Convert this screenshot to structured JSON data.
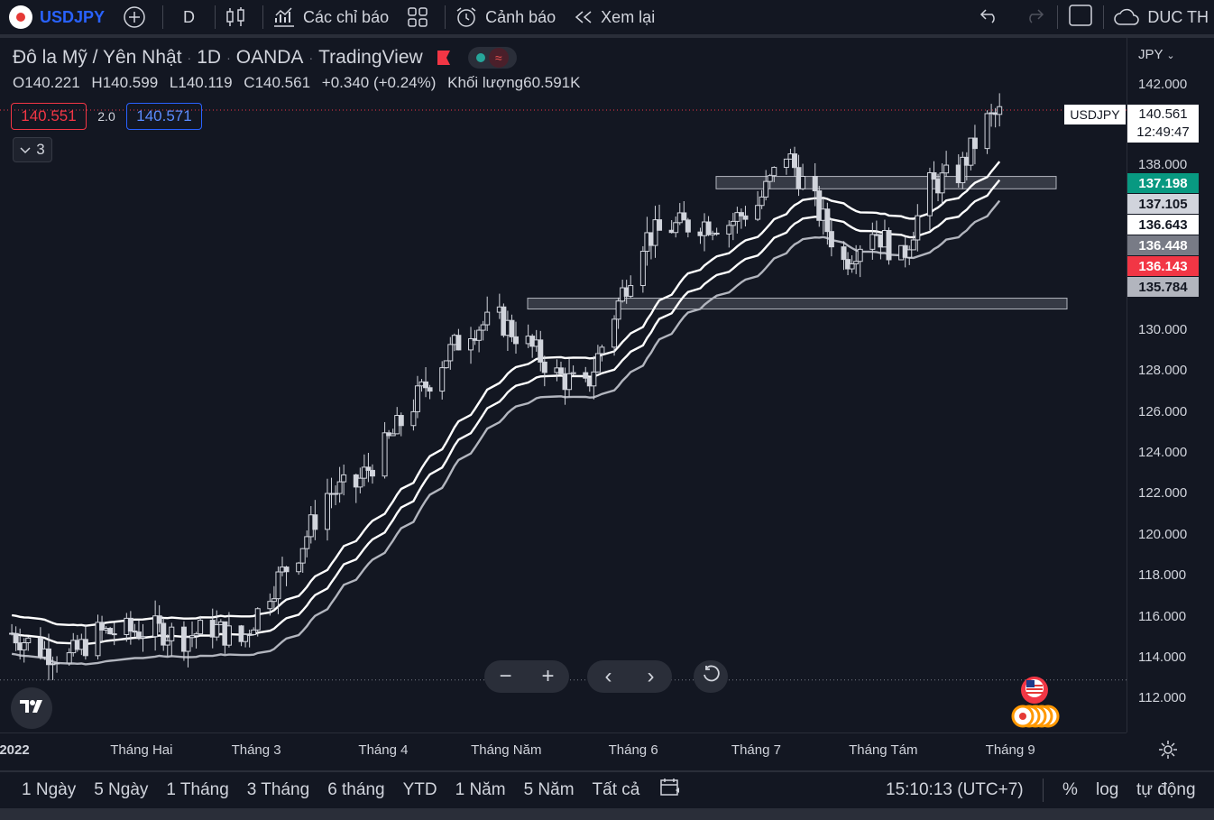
{
  "toolbar": {
    "symbol": "USDJPY",
    "interval": "D",
    "indicators_label": "Các chỉ báo",
    "alert_label": "Cảnh báo",
    "replay_label": "Xem lại",
    "account_label": "DUC TH",
    "icons": [
      "plus-circle-icon",
      "candles-icon",
      "indicators-icon",
      "layout-grid-icon",
      "alarm-icon",
      "rewind-icon",
      "undo-icon",
      "redo-icon",
      "fullscreen-icon",
      "cloud-icon"
    ]
  },
  "legend": {
    "name": "Đô la Mỹ / Yên Nhật",
    "interval": "1D",
    "exchange": "OANDA",
    "source": "TradingView",
    "open_key": "O",
    "open": "140.221",
    "high_key": "H",
    "high": "140.599",
    "low_key": "L",
    "low": "140.119",
    "close_key": "C",
    "close": "140.561",
    "change": "+0.340 (+0.24%)",
    "volume_label": "Khối lượng",
    "volume": "60.591K",
    "bid": "140.551",
    "spread": "2.0",
    "ask": "140.571",
    "indicator_count": "3"
  },
  "price_axis": {
    "currency": "JPY",
    "current_symbol": "USDJPY",
    "current_price": "140.561",
    "countdown": "12:49:47",
    "tags": [
      {
        "value": "137.198",
        "bg": "#089981",
        "fg": "#ffffff"
      },
      {
        "value": "137.105",
        "bg": "#d1d4dc",
        "fg": "#131722"
      },
      {
        "value": "136.643",
        "bg": "#ffffff",
        "fg": "#131722"
      },
      {
        "value": "136.448",
        "bg": "#787b86",
        "fg": "#ffffff"
      },
      {
        "value": "136.143",
        "bg": "#f23645",
        "fg": "#ffffff"
      },
      {
        "value": "135.784",
        "bg": "#b2b5be",
        "fg": "#131722"
      }
    ]
  },
  "chart_data": {
    "type": "candlestick",
    "title": "Đô la Mỹ / Yên Nhật · 1D · OANDA",
    "y_ticks": [
      "142.000",
      "138.000",
      "130.000",
      "128.000",
      "126.000",
      "124.000",
      "122.000",
      "120.000",
      "118.000",
      "116.000",
      "114.000",
      "112.000"
    ],
    "x_ticks": [
      "2022",
      "Tháng Hai",
      "Tháng 3",
      "Tháng 4",
      "Tháng Năm",
      "Tháng 6",
      "Tháng 7",
      "Tháng Tám",
      "Tháng 9"
    ],
    "resistance_zones": [
      {
        "from": 136.85,
        "to": 137.45
      },
      {
        "from": 131.05,
        "to": 131.55
      }
    ],
    "series": [
      {
        "name": "Close",
        "points": [
          [
            "2022-01-03",
            115.2
          ],
          [
            "2022-01-10",
            114.4
          ],
          [
            "2022-01-17",
            114.0
          ],
          [
            "2022-01-24",
            115.2
          ],
          [
            "2022-01-31",
            115.3
          ],
          [
            "2022-02-07",
            115.4
          ],
          [
            "2022-02-14",
            115.0
          ],
          [
            "2022-02-21",
            115.5
          ],
          [
            "2022-02-28",
            114.8
          ],
          [
            "2022-03-07",
            117.3
          ],
          [
            "2022-03-14",
            119.2
          ],
          [
            "2022-03-21",
            122.0
          ],
          [
            "2022-03-28",
            122.4
          ],
          [
            "2022-04-04",
            124.3
          ],
          [
            "2022-04-11",
            126.4
          ],
          [
            "2022-04-18",
            128.5
          ],
          [
            "2022-04-25",
            130.1
          ],
          [
            "2022-05-02",
            130.5
          ],
          [
            "2022-05-09",
            129.3
          ],
          [
            "2022-05-16",
            127.8
          ],
          [
            "2022-05-23",
            127.1
          ],
          [
            "2022-05-30",
            130.8
          ],
          [
            "2022-06-06",
            134.4
          ],
          [
            "2022-06-13",
            135.0
          ],
          [
            "2022-06-20",
            135.2
          ],
          [
            "2022-06-27",
            135.2
          ],
          [
            "2022-07-04",
            136.1
          ],
          [
            "2022-07-11",
            138.6
          ],
          [
            "2022-07-18",
            136.1
          ],
          [
            "2022-07-25",
            133.3
          ],
          [
            "2022-08-01",
            135.0
          ],
          [
            "2022-08-08",
            133.4
          ],
          [
            "2022-08-15",
            137.0
          ],
          [
            "2022-08-22",
            137.6
          ],
          [
            "2022-08-29",
            140.2
          ],
          [
            "2022-09-01",
            140.56
          ]
        ]
      }
    ],
    "moving_averages": [
      "upper-band",
      "middle-band",
      "lower-band"
    ],
    "grid": false
  },
  "time_footer": {
    "ranges": [
      "1 Ngày",
      "5 Ngày",
      "1 Tháng",
      "3 Tháng",
      "6 tháng",
      "YTD",
      "1 Năm",
      "5 Năm",
      "Tất cả"
    ],
    "clock": "15:10:13 (UTC+7)",
    "percent": "%",
    "log": "log",
    "auto": "tự động"
  }
}
